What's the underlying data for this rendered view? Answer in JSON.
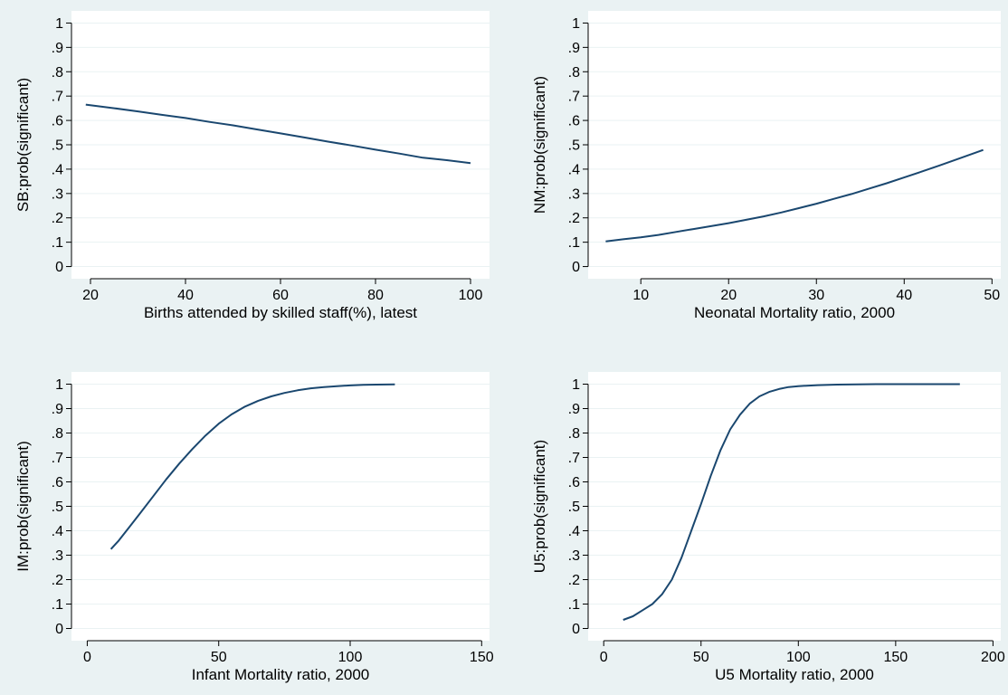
{
  "page": {
    "background": "#eaf2f3",
    "plot_background": "#ffffff",
    "line_color": "#1a476f",
    "grid_color": "#eaf2f3"
  },
  "chart_data": [
    {
      "type": "line",
      "title": "",
      "xlabel": "Births attended by skilled staff(%), latest",
      "ylabel": "SB:prob(significant)",
      "xlim": [
        16,
        104
      ],
      "ylim": [
        -0.05,
        1.05
      ],
      "xticks": [
        20,
        40,
        60,
        80,
        100
      ],
      "xtick_labels": [
        "20",
        "40",
        "60",
        "80",
        "100"
      ],
      "yticks": [
        0,
        0.1,
        0.2,
        0.3,
        0.4,
        0.5,
        0.6,
        0.7,
        0.8,
        0.9,
        1
      ],
      "ytick_labels": [
        "0",
        ".1",
        ".2",
        ".3",
        ".4",
        ".5",
        ".6",
        ".7",
        ".8",
        ".9",
        "1"
      ],
      "grid": true,
      "x": [
        19,
        25,
        30,
        35,
        40,
        45,
        50,
        55,
        60,
        65,
        70,
        75,
        80,
        85,
        90,
        95,
        100
      ],
      "y": [
        0.665,
        0.65,
        0.637,
        0.623,
        0.61,
        0.594,
        0.58,
        0.563,
        0.547,
        0.53,
        0.513,
        0.497,
        0.48,
        0.464,
        0.447,
        0.437,
        0.425
      ]
    },
    {
      "type": "line",
      "title": "",
      "xlabel": "Neonatal Mortality  ratio, 2000",
      "ylabel": "NM:prob(significant)",
      "xlim": [
        4,
        51
      ],
      "ylim": [
        -0.05,
        1.05
      ],
      "xticks": [
        10,
        20,
        30,
        40,
        50
      ],
      "xtick_labels": [
        "10",
        "20",
        "30",
        "40",
        "50"
      ],
      "yticks": [
        0,
        0.1,
        0.2,
        0.3,
        0.4,
        0.5,
        0.6,
        0.7,
        0.8,
        0.9,
        1
      ],
      "ytick_labels": [
        "0",
        ".1",
        ".2",
        ".3",
        ".4",
        ".5",
        ".6",
        ".7",
        ".8",
        ".9",
        "1"
      ],
      "grid": true,
      "x": [
        6,
        8,
        10,
        12,
        14,
        16,
        18,
        20,
        22,
        24,
        26,
        28,
        30,
        32,
        34,
        36,
        38,
        40,
        42,
        44,
        46,
        49
      ],
      "y": [
        0.103,
        0.112,
        0.12,
        0.13,
        0.142,
        0.154,
        0.166,
        0.178,
        0.192,
        0.206,
        0.222,
        0.24,
        0.258,
        0.278,
        0.298,
        0.32,
        0.342,
        0.366,
        0.39,
        0.415,
        0.44,
        0.479
      ]
    },
    {
      "type": "line",
      "title": "",
      "xlabel": "Infant Mortality  ratio, 2000",
      "ylabel": "IM:prob(significant)",
      "xlim": [
        -6,
        153
      ],
      "ylim": [
        -0.05,
        1.05
      ],
      "xticks": [
        0,
        50,
        100,
        150
      ],
      "xtick_labels": [
        "0",
        "50",
        "100",
        "150"
      ],
      "yticks": [
        0,
        0.1,
        0.2,
        0.3,
        0.4,
        0.5,
        0.6,
        0.7,
        0.8,
        0.9,
        1
      ],
      "ytick_labels": [
        "0",
        ".1",
        ".2",
        ".3",
        ".4",
        ".5",
        ".6",
        ".7",
        ".8",
        ".9",
        "1"
      ],
      "grid": true,
      "x": [
        9,
        12,
        16,
        20,
        25,
        30,
        35,
        40,
        45,
        50,
        55,
        60,
        65,
        70,
        75,
        80,
        85,
        90,
        95,
        100,
        105,
        110,
        117
      ],
      "y": [
        0.325,
        0.36,
        0.415,
        0.47,
        0.54,
        0.61,
        0.675,
        0.735,
        0.79,
        0.838,
        0.877,
        0.908,
        0.932,
        0.95,
        0.964,
        0.975,
        0.983,
        0.988,
        0.992,
        0.995,
        0.997,
        0.998,
        0.999
      ]
    },
    {
      "type": "line",
      "title": "",
      "xlabel": "U5 Mortality  ratio, 2000",
      "ylabel": "U5:prob(significant)",
      "xlim": [
        -8,
        204
      ],
      "ylim": [
        -0.05,
        1.05
      ],
      "xticks": [
        0,
        50,
        100,
        150,
        200
      ],
      "xtick_labels": [
        "0",
        "50",
        "100",
        "150",
        "200"
      ],
      "yticks": [
        0,
        0.1,
        0.2,
        0.3,
        0.4,
        0.5,
        0.6,
        0.7,
        0.8,
        0.9,
        1
      ],
      "ytick_labels": [
        "0",
        ".1",
        ".2",
        ".3",
        ".4",
        ".5",
        ".6",
        ".7",
        ".8",
        ".9",
        "1"
      ],
      "grid": true,
      "x": [
        10,
        15,
        20,
        25,
        30,
        35,
        40,
        45,
        50,
        55,
        60,
        65,
        70,
        75,
        80,
        85,
        90,
        95,
        100,
        110,
        120,
        130,
        140,
        160,
        183
      ],
      "y": [
        0.035,
        0.05,
        0.075,
        0.1,
        0.14,
        0.2,
        0.29,
        0.4,
        0.51,
        0.625,
        0.73,
        0.815,
        0.875,
        0.92,
        0.95,
        0.968,
        0.98,
        0.988,
        0.992,
        0.996,
        0.998,
        0.999,
        1.0,
        1.0,
        1.0
      ]
    }
  ]
}
